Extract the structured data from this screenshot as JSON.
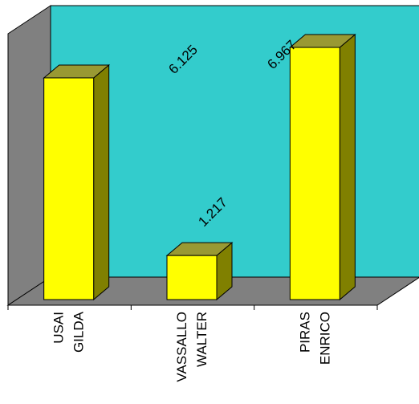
{
  "chart_data": {
    "type": "bar",
    "style": "3d",
    "categories": [
      [
        "USAI",
        "GILDA"
      ],
      [
        "VASSALLO",
        "WALTER"
      ],
      [
        "PIRAS",
        "ENRICO"
      ]
    ],
    "values": [
      6.125,
      1.217,
      6.967
    ],
    "data_labels": [
      "6.125",
      "1.217",
      "6.967"
    ],
    "ylim": [
      0,
      7.5
    ],
    "legend": "none",
    "grid": false,
    "colors": {
      "wall": "#33CCCC",
      "floor": "#808080",
      "side_wall": "#808080",
      "bar_front": "#FFFF00",
      "bar_top": "#999933",
      "bar_side": "#808000",
      "outline": "#000000"
    }
  }
}
